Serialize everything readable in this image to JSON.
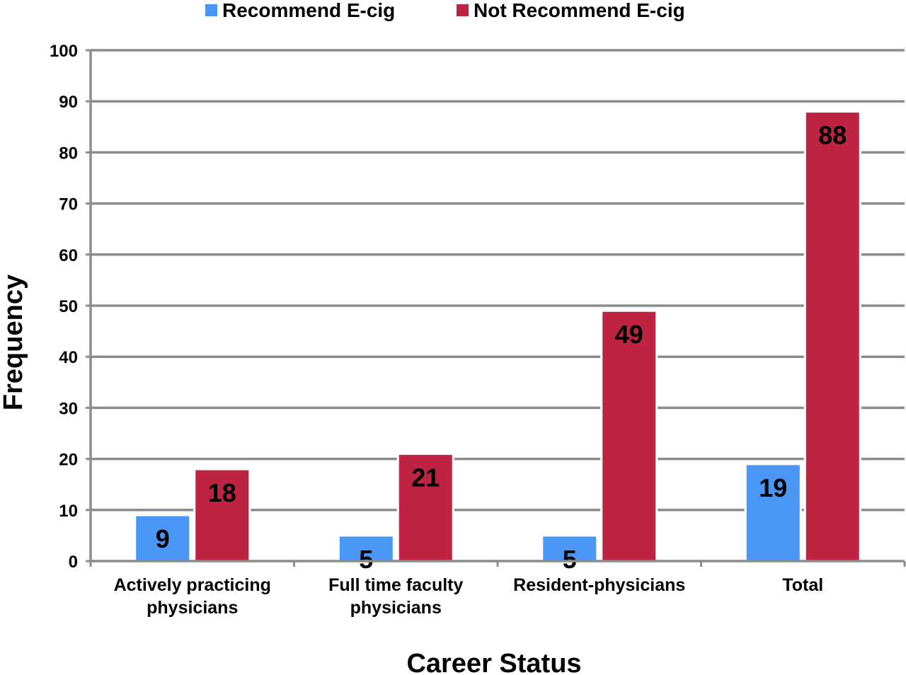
{
  "chart_data": {
    "type": "bar",
    "title": "",
    "xlabel": "Career Status",
    "ylabel": "Frequency",
    "ylim": [
      0,
      100
    ],
    "yticks": [
      0,
      10,
      20,
      30,
      40,
      50,
      60,
      70,
      80,
      90,
      100
    ],
    "grid": true,
    "legend_position": "top",
    "categories": [
      [
        "Actively practicing",
        "physicians"
      ],
      [
        "Full time faculty",
        "physicians"
      ],
      [
        "Resident-physicians"
      ],
      [
        "Total"
      ]
    ],
    "series": [
      {
        "name": "Recommend E-cig",
        "color": "#4a96f4",
        "values": [
          9,
          5,
          5,
          19
        ]
      },
      {
        "name": "Not Recommend E-cig",
        "color": "#be2341",
        "values": [
          18,
          21,
          49,
          88
        ]
      }
    ],
    "data_labels": [
      [
        "9",
        "5",
        "5",
        "19"
      ],
      [
        "18",
        "21",
        "49",
        "88"
      ]
    ]
  }
}
